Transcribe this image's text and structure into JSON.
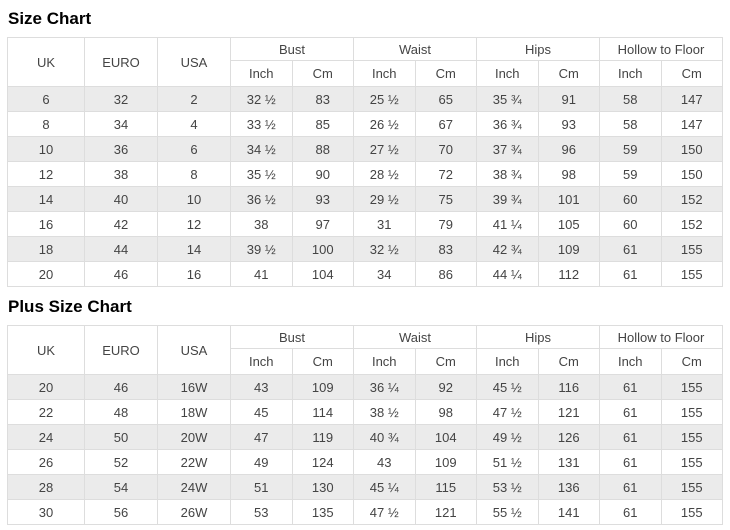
{
  "colors": {
    "background": "#ffffff",
    "title": "#000000",
    "text": "#444444",
    "border": "#dddddd",
    "stripe": "#ebebeb"
  },
  "chart_data": [
    {
      "type": "table",
      "title": "Size Chart",
      "plain_columns": [
        "UK",
        "EURO",
        "USA"
      ],
      "measure_groups": [
        "Bust",
        "Waist",
        "Hips",
        "Hollow to Floor"
      ],
      "unit_columns": [
        "Inch",
        "Cm"
      ],
      "rows": [
        [
          "6",
          "32",
          "2",
          "32 ½",
          "83",
          "25 ½",
          "65",
          "35 ¾",
          "91",
          "58",
          "147"
        ],
        [
          "8",
          "34",
          "4",
          "33 ½",
          "85",
          "26 ½",
          "67",
          "36 ¾",
          "93",
          "58",
          "147"
        ],
        [
          "10",
          "36",
          "6",
          "34 ½",
          "88",
          "27 ½",
          "70",
          "37 ¾",
          "96",
          "59",
          "150"
        ],
        [
          "12",
          "38",
          "8",
          "35 ½",
          "90",
          "28 ½",
          "72",
          "38 ¾",
          "98",
          "59",
          "150"
        ],
        [
          "14",
          "40",
          "10",
          "36 ½",
          "93",
          "29 ½",
          "75",
          "39 ¾",
          "101",
          "60",
          "152"
        ],
        [
          "16",
          "42",
          "12",
          "38",
          "97",
          "31",
          "79",
          "41 ¼",
          "105",
          "60",
          "152"
        ],
        [
          "18",
          "44",
          "14",
          "39 ½",
          "100",
          "32 ½",
          "83",
          "42 ¾",
          "109",
          "61",
          "155"
        ],
        [
          "20",
          "46",
          "16",
          "41",
          "104",
          "34",
          "86",
          "44 ¼",
          "112",
          "61",
          "155"
        ]
      ]
    },
    {
      "type": "table",
      "title": "Plus Size Chart",
      "plain_columns": [
        "UK",
        "EURO",
        "USA"
      ],
      "measure_groups": [
        "Bust",
        "Waist",
        "Hips",
        "Hollow to Floor"
      ],
      "unit_columns": [
        "Inch",
        "Cm"
      ],
      "rows": [
        [
          "20",
          "46",
          "16W",
          "43",
          "109",
          "36 ¼",
          "92",
          "45 ½",
          "116",
          "61",
          "155"
        ],
        [
          "22",
          "48",
          "18W",
          "45",
          "114",
          "38 ½",
          "98",
          "47 ½",
          "121",
          "61",
          "155"
        ],
        [
          "24",
          "50",
          "20W",
          "47",
          "119",
          "40 ¾",
          "104",
          "49 ½",
          "126",
          "61",
          "155"
        ],
        [
          "26",
          "52",
          "22W",
          "49",
          "124",
          "43",
          "109",
          "51 ½",
          "131",
          "61",
          "155"
        ],
        [
          "28",
          "54",
          "24W",
          "51",
          "130",
          "45 ¼",
          "115",
          "53 ½",
          "136",
          "61",
          "155"
        ],
        [
          "30",
          "56",
          "26W",
          "53",
          "135",
          "47 ½",
          "121",
          "55 ½",
          "141",
          "61",
          "155"
        ]
      ]
    }
  ]
}
